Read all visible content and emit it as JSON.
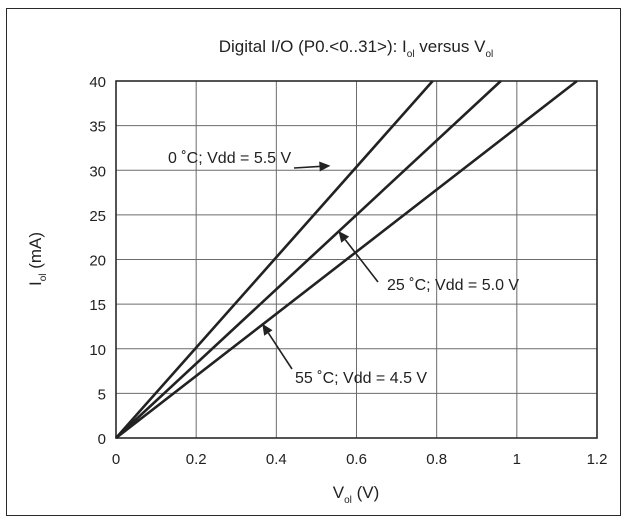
{
  "chart_data": {
    "type": "line",
    "title_parts": {
      "prefix": "Digital I/O (P0.<0..31>): I",
      "sub1": "ol",
      "middle": " versus V",
      "sub2": "ol"
    },
    "xlabel_parts": {
      "main": "V",
      "sub": "ol",
      "unit": " (V)"
    },
    "ylabel_parts": {
      "main": "I",
      "sub": "ol",
      "unit": " (mA)"
    },
    "xlim": [
      0,
      1.2
    ],
    "ylim": [
      0,
      40
    ],
    "x_ticks": [
      "0",
      "0.2",
      "0.4",
      "0.6",
      "0.8",
      "1",
      "1.2"
    ],
    "y_ticks": [
      "0",
      "5",
      "10",
      "15",
      "20",
      "25",
      "30",
      "35",
      "40"
    ],
    "grid": true,
    "series": [
      {
        "name": "0 °C; Vdd = 5.5 V",
        "x": [
          0,
          0.79
        ],
        "y": [
          0,
          40
        ]
      },
      {
        "name": "25 °C; Vdd = 5.0 V",
        "x": [
          0,
          0.96
        ],
        "y": [
          0,
          40
        ]
      },
      {
        "name": "55 °C; Vdd = 4.5 V",
        "x": [
          0,
          1.15
        ],
        "y": [
          0,
          40
        ]
      }
    ],
    "annotations": [
      {
        "text": "0 ˚C; Vdd = 5.5 V",
        "series": 0,
        "point": [
          0.535,
          30.5
        ]
      },
      {
        "text": "25 ˚C; Vdd = 5.0 V",
        "series": 1,
        "point": [
          0.555,
          23.2
        ]
      },
      {
        "text": "55 ˚C; Vdd = 4.5 V",
        "series": 2,
        "point": [
          0.365,
          12.8
        ]
      }
    ],
    "colors": {
      "line": "#222222",
      "grid": "#6b6b6b"
    }
  }
}
